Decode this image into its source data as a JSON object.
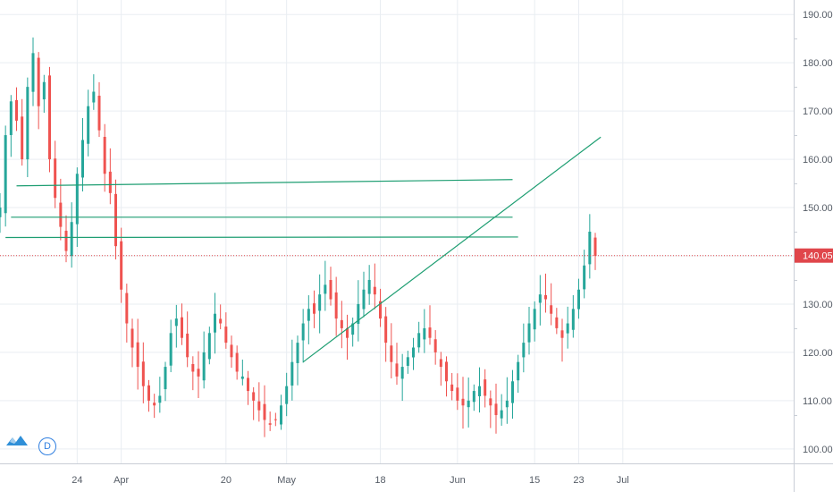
{
  "chart_data": {
    "type": "candlestick",
    "title": "",
    "xlabel": "",
    "ylabel": "",
    "x_ticks": [
      "24",
      "Apr",
      "20",
      "May",
      "18",
      "Jun",
      "15",
      "23",
      "Jul"
    ],
    "y_ticks": [
      "100.00",
      "110.00",
      "120.00",
      "130.00",
      "140.00",
      "150.00",
      "160.00",
      "170.00",
      "180.00",
      "190.00"
    ],
    "ylim": [
      97,
      193
    ],
    "last_price": "140.05",
    "grid": true,
    "close_series": [
      150,
      165,
      172,
      168,
      160,
      175,
      182,
      171,
      176,
      160,
      152,
      146,
      141,
      147,
      157,
      164,
      171,
      174,
      166,
      157,
      153,
      142,
      133,
      126,
      121,
      117,
      113,
      110,
      109,
      111,
      117,
      124,
      127,
      123,
      119,
      116,
      115,
      120,
      124,
      128,
      126,
      122,
      119,
      116,
      115,
      112,
      110,
      108,
      106,
      105,
      106,
      109,
      113,
      118,
      122,
      126,
      129,
      128,
      132,
      134,
      131,
      127,
      125,
      123,
      126,
      130,
      133,
      135,
      132,
      127,
      122,
      118,
      115,
      117,
      119,
      121,
      124,
      125,
      123,
      120,
      117,
      114,
      112,
      110,
      109,
      110,
      112,
      113,
      111,
      109,
      107,
      108,
      110,
      114,
      118,
      122,
      126,
      129,
      132,
      131,
      128,
      125,
      123,
      126,
      129,
      133,
      138,
      145,
      140
    ],
    "trend_lines": [
      {
        "x": [
          "Mar 13",
          "Jun 11"
        ],
        "y": [
          154.5,
          155.8
        ]
      },
      {
        "x": [
          "Mar 12",
          "Jun 11"
        ],
        "y": [
          148.0,
          148.0
        ]
      },
      {
        "x": [
          "Mar 11",
          "Jun 12"
        ],
        "y": [
          143.8,
          143.9
        ]
      },
      {
        "x": [
          "May 4",
          "Jun 27"
        ],
        "y": [
          118,
          164.6
        ]
      }
    ],
    "colors": {
      "up": "#26a69a",
      "down": "#ef5350",
      "trend_line": "#1e9e72",
      "price_line": "#e0464b",
      "grid": "#e9edf2"
    }
  },
  "toolbar": {
    "logo_icon": "tradingview-logo-icon",
    "interval_label": "D"
  }
}
